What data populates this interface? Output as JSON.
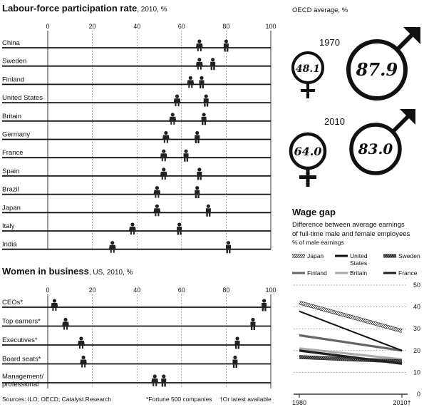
{
  "chart_data": [
    {
      "type": "scatter",
      "title": "Labour-force participation rate",
      "subtitle": ", 2010, %",
      "xlim": [
        0,
        100
      ],
      "ticks": [
        0,
        20,
        40,
        60,
        80,
        100
      ],
      "categories": [
        "China",
        "Sweden",
        "Finland",
        "United States",
        "Britain",
        "Germany",
        "France",
        "Spain",
        "Brazil",
        "Japan",
        "Italy",
        "India"
      ],
      "series": [
        {
          "name": "Women",
          "values": [
            68,
            68,
            64,
            58,
            56,
            53,
            52,
            52,
            49,
            49,
            38,
            29
          ]
        },
        {
          "name": "Men",
          "values": [
            80,
            74,
            69,
            71,
            70,
            67,
            62,
            68,
            67,
            72,
            59,
            81
          ]
        }
      ]
    },
    {
      "type": "scatter",
      "title": "Women in business",
      "subtitle": ", US, 2010, %",
      "xlim": [
        0,
        100
      ],
      "ticks": [
        0,
        20,
        40,
        60,
        80,
        100
      ],
      "categories": [
        "CEOs*",
        "Top earners*",
        "Executives*",
        "Board seats*",
        "Management/ professional"
      ],
      "series": [
        {
          "name": "Women",
          "values": [
            3,
            8,
            15,
            16,
            48
          ]
        },
        {
          "name": "Men",
          "values": [
            97,
            92,
            85,
            84,
            52
          ]
        }
      ]
    },
    {
      "type": "pie",
      "title": "OECD average, %",
      "groups": [
        {
          "year": "1970",
          "women": 48.1,
          "men": 87.9,
          "women_label": "48.1",
          "men_label": "87.9"
        },
        {
          "year": "2010",
          "women": 64.0,
          "men": 83.0,
          "women_label": "64.0",
          "men_label": "83.0"
        }
      ]
    },
    {
      "type": "line",
      "title": "Wage gap",
      "subtitle": "Difference between average earnings of full-time male and female employees",
      "unit_note": "% of male earnings",
      "x_labels": [
        "1980",
        "2010†"
      ],
      "ylim": [
        0,
        50
      ],
      "yticks": [
        0,
        10,
        20,
        30,
        40,
        50
      ],
      "series": [
        {
          "name": "Japan",
          "style": "hatched",
          "values": [
            42,
            29
          ]
        },
        {
          "name": "United States",
          "style": "solid-thin",
          "values": [
            38,
            20
          ]
        },
        {
          "name": "Sweden",
          "style": "hatched-dark",
          "values": [
            17,
            15
          ]
        },
        {
          "name": "Finland",
          "style": "solid-grey",
          "values": [
            27,
            20
          ]
        },
        {
          "name": "Britain",
          "style": "solid-light",
          "values": [
            21,
            16
          ]
        },
        {
          "name": "France",
          "style": "solid-dark",
          "values": [
            20,
            14
          ]
        }
      ]
    }
  ],
  "footnotes": {
    "sources": "Sources: ILO; OECD; Catalyst Research",
    "note1": "*Fortune 500 companies",
    "note2": "†Or latest available"
  }
}
